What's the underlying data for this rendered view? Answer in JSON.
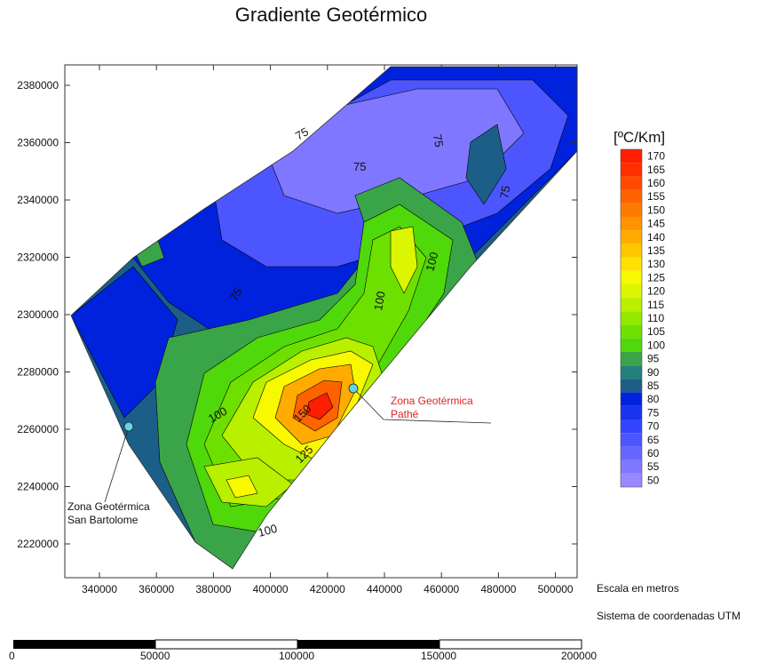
{
  "title": "Gradiente Geotérmico",
  "x_ticks": [
    "340000",
    "360000",
    "380000",
    "400000",
    "420000",
    "440000",
    "460000",
    "480000",
    "500000"
  ],
  "y_ticks": [
    "2380000",
    "2360000",
    "2340000",
    "2320000",
    "2300000",
    "2280000",
    "2260000",
    "2240000",
    "2220000"
  ],
  "legend": {
    "title": "[ºC/Km]",
    "levels": [
      "170",
      "165",
      "160",
      "155",
      "150",
      "145",
      "140",
      "135",
      "130",
      "125",
      "120",
      "115",
      "110",
      "105",
      "100",
      "95",
      "90",
      "85",
      "80",
      "75",
      "70",
      "65",
      "60",
      "55",
      "50"
    ],
    "colors": [
      "#ff1e00",
      "#ff2f00",
      "#ff4a00",
      "#ff6300",
      "#ff7b00",
      "#ff9300",
      "#ffab00",
      "#ffc600",
      "#ffe000",
      "#f8f800",
      "#dcf500",
      "#b8f000",
      "#94e800",
      "#6ee000",
      "#4fd80a",
      "#3aa548",
      "#23807a",
      "#1b5f88",
      "#0022dd",
      "#1a33ee",
      "#3344ff",
      "#4d55ff",
      "#6666ff",
      "#7f77ff",
      "#9988ff"
    ]
  },
  "contour_labels": [
    "75",
    "75",
    "75",
    "75",
    "75",
    "100",
    "100",
    "100",
    "100",
    "150",
    "125"
  ],
  "sites": [
    {
      "name": "Zona Geotérmica San Bartolome",
      "line1": "Zona Geotérmica",
      "line2": "San Bartolome",
      "color": "#000000"
    },
    {
      "name": "Zona Geotérmica Pathé",
      "line1": "Zona Geotérmica",
      "line2": "Pathé",
      "color": "#dd2222"
    }
  ],
  "notes": {
    "scale_label": "Escala en metros",
    "crs_label": "Sistema de coordenadas UTM"
  },
  "scalebar": {
    "labels": [
      "0",
      "50000",
      "100000",
      "150000",
      "200000"
    ]
  },
  "accent_colors": {
    "marker": "#5fd6e6",
    "frame": "#333333"
  }
}
